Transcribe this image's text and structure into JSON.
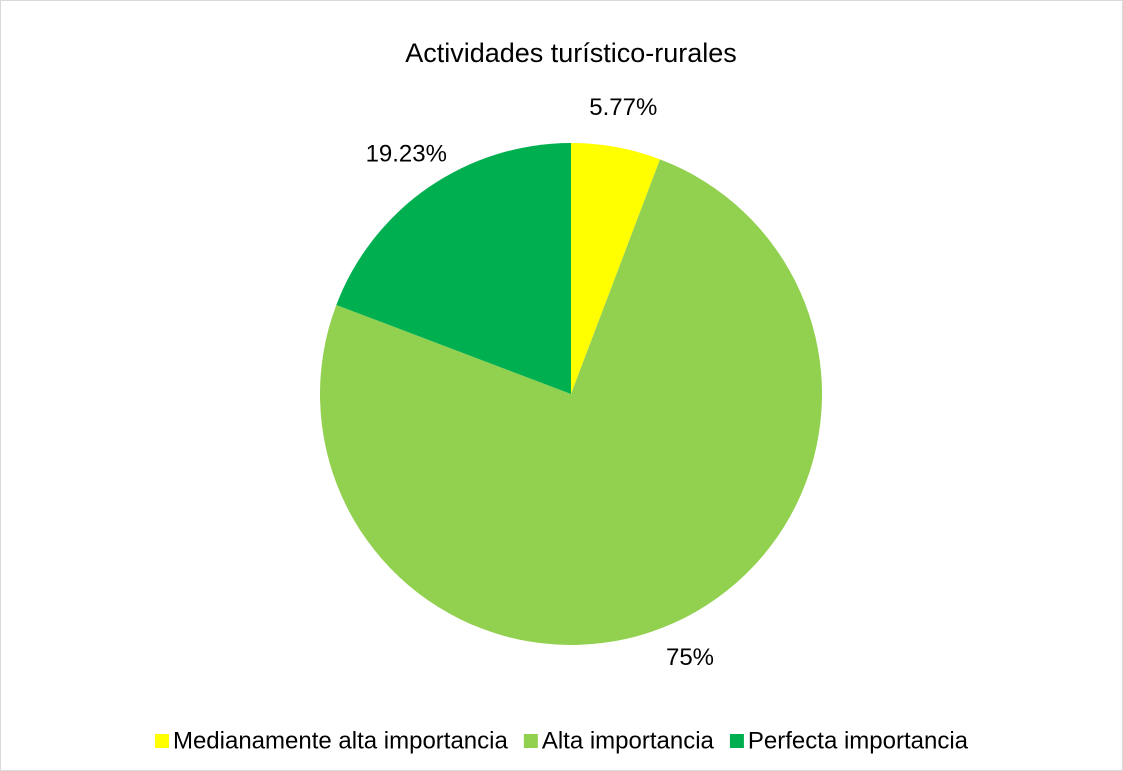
{
  "chart_data": {
    "type": "pie",
    "title": "Actividades turístico-rurales",
    "categories": [
      "Medianamente alta importancia",
      "Alta importancia",
      "Perfecta importancia"
    ],
    "values": [
      5.77,
      75,
      19.23
    ],
    "value_labels": [
      "5.77%",
      "75%",
      "19.23%"
    ],
    "colors": [
      "#ffff00",
      "#92d050",
      "#00b050"
    ],
    "legend": "bottom"
  }
}
